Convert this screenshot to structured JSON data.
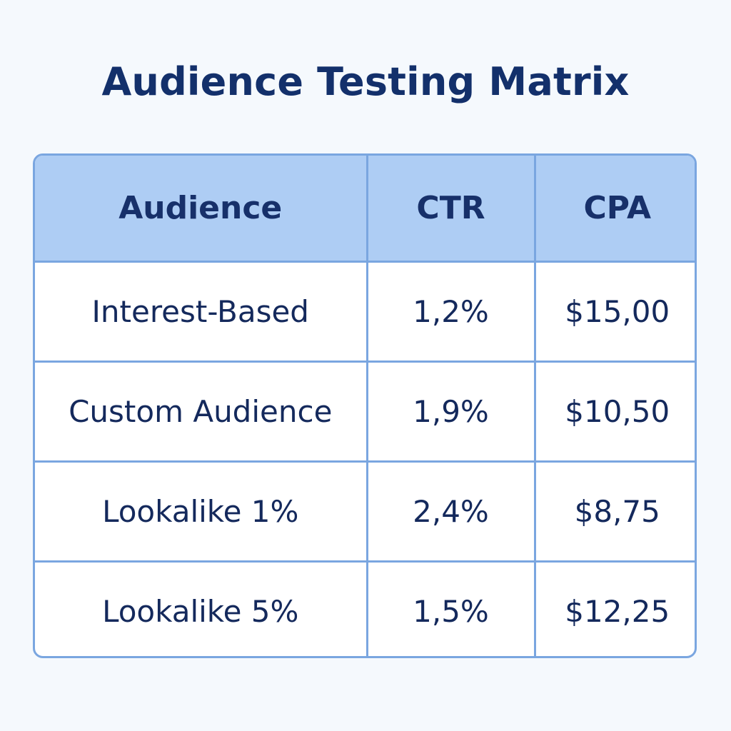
{
  "chart_data": {
    "type": "table",
    "title": "Audience Testing Matrix",
    "columns": [
      "Audience",
      "CTR",
      "CPA"
    ],
    "rows": [
      [
        "Interest-Based",
        "1,2%",
        "$15,00"
      ],
      [
        "Custom Audience",
        "1,9%",
        "$10,50"
      ],
      [
        "Lookalike 1%",
        "2,4%",
        "$8,75"
      ],
      [
        "Lookalike 5%",
        "1,5%",
        "$12,25"
      ]
    ],
    "colors": {
      "header_fill": "#aecdf4",
      "border": "#7aa6e0",
      "title_text": "#13306b",
      "cell_text": "#14295c"
    }
  }
}
